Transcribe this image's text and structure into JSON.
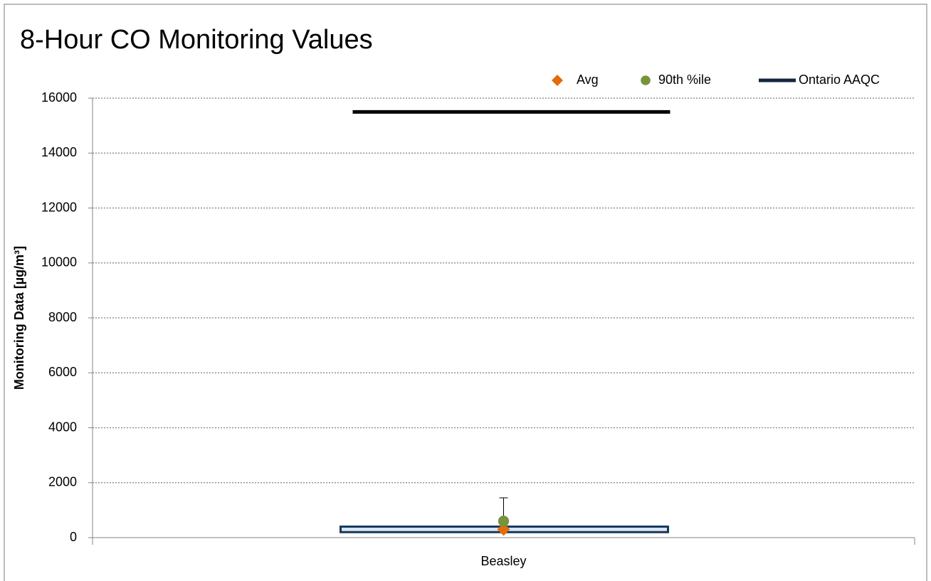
{
  "chart_data": {
    "type": "box",
    "title": "8-Hour CO Monitoring Values",
    "ylabel": "Monitoring Data [µg/m³]",
    "categories": [
      "Beasley"
    ],
    "series": [
      {
        "name": "Avg",
        "color": "#e36c09",
        "marker": "diamond",
        "values": [
          300
        ]
      },
      {
        "name": "90th %ile",
        "color": "#77933c",
        "marker": "circle",
        "values": [
          600
        ]
      },
      {
        "name": "Ontario AAQC",
        "color": "#14263d",
        "marker": "line",
        "values": [
          15500
        ]
      }
    ],
    "box": {
      "color": "#17375e",
      "low": [
        200
      ],
      "high": [
        400
      ],
      "whisker_high": [
        1450
      ]
    },
    "ylim": [
      0,
      16000
    ],
    "yticks": [
      0,
      2000,
      4000,
      6000,
      8000,
      10000,
      12000,
      14000,
      16000
    ],
    "grid": true,
    "legend": "top-right"
  }
}
